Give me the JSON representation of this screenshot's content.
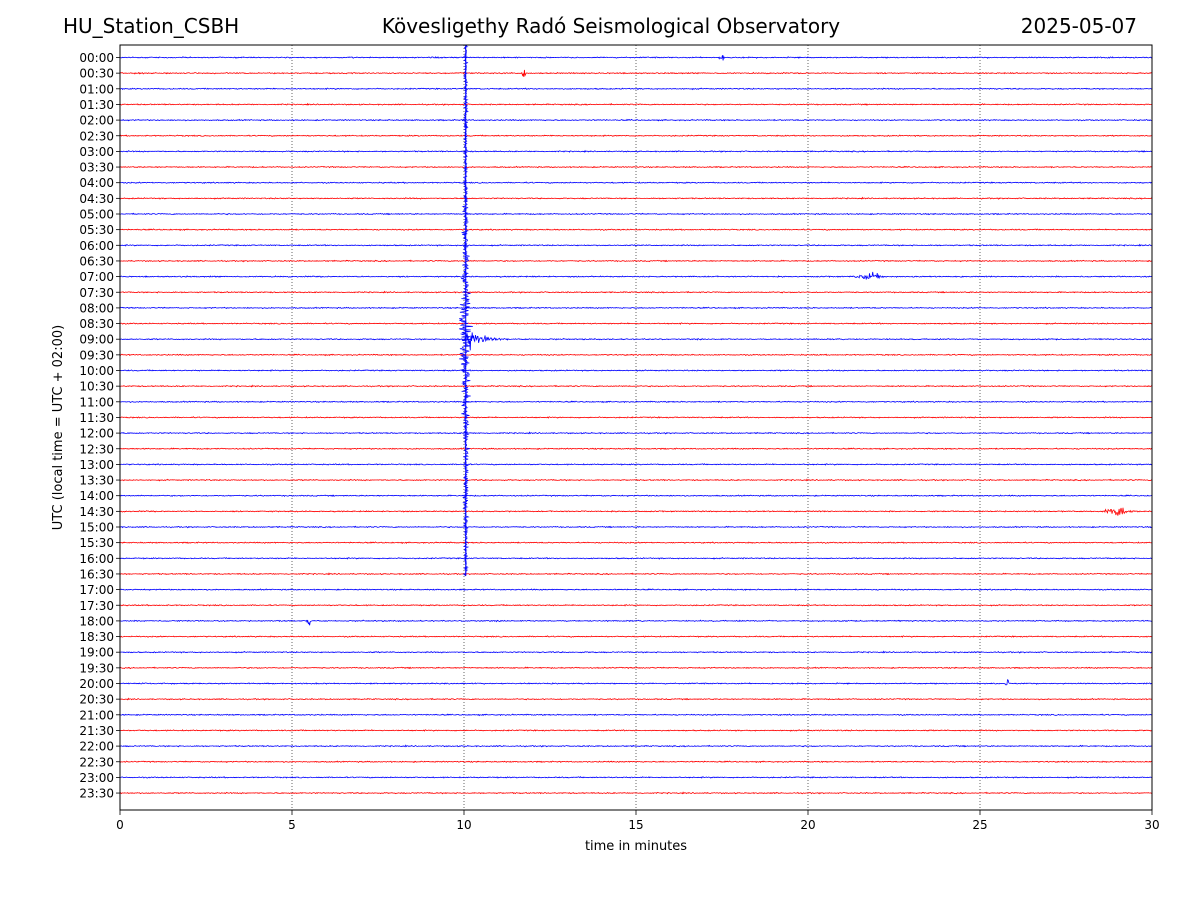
{
  "header": {
    "station": "HU_Station_CSBH",
    "observatory": "Kövesligethy Radó Seismological Observatory",
    "date": "2025-05-07"
  },
  "chart_data": {
    "type": "line",
    "title": "Kövesligethy Radó Seismological Observatory",
    "xlabel": "time in minutes",
    "ylabel": "UTC (local time = UTC + 02:00)",
    "xlim": [
      0,
      30
    ],
    "xticks": [
      0,
      5,
      10,
      15,
      20,
      25,
      30
    ],
    "grid": "vertical dotted lines at 5-minute intervals",
    "row_labels": [
      "00:00",
      "00:30",
      "01:00",
      "01:30",
      "02:00",
      "02:30",
      "03:00",
      "03:30",
      "04:00",
      "04:30",
      "05:00",
      "05:30",
      "06:00",
      "06:30",
      "07:00",
      "07:30",
      "08:00",
      "08:30",
      "09:00",
      "09:30",
      "10:00",
      "10:30",
      "11:00",
      "11:30",
      "12:00",
      "12:30",
      "13:00",
      "13:30",
      "14:00",
      "14:30",
      "15:00",
      "15:30",
      "16:00",
      "16:30",
      "17:00",
      "17:30",
      "18:00",
      "18:30",
      "19:00",
      "19:30",
      "20:00",
      "20:30",
      "21:00",
      "21:30",
      "22:00",
      "22:30",
      "23:00",
      "23:30"
    ],
    "colors": {
      "even_rows": "#0000ff",
      "odd_rows": "#ff0000"
    },
    "events": [
      {
        "label": "earthquake",
        "row_start": "00:00",
        "row_end": "16:30",
        "peak_row": "09:00",
        "minute": 10.05
      },
      {
        "label": "burst",
        "row": "07:00",
        "minute": 21.8
      },
      {
        "label": "burst",
        "row": "14:30",
        "minute": 29.0
      },
      {
        "label": "spike",
        "row": "18:00",
        "minute": 5.5
      },
      {
        "label": "spike",
        "row": "20:00",
        "minute": 25.8
      },
      {
        "label": "spike",
        "row": "00:30",
        "minute": 11.75
      },
      {
        "label": "spike",
        "row": "00:00",
        "minute": 17.5
      }
    ]
  }
}
